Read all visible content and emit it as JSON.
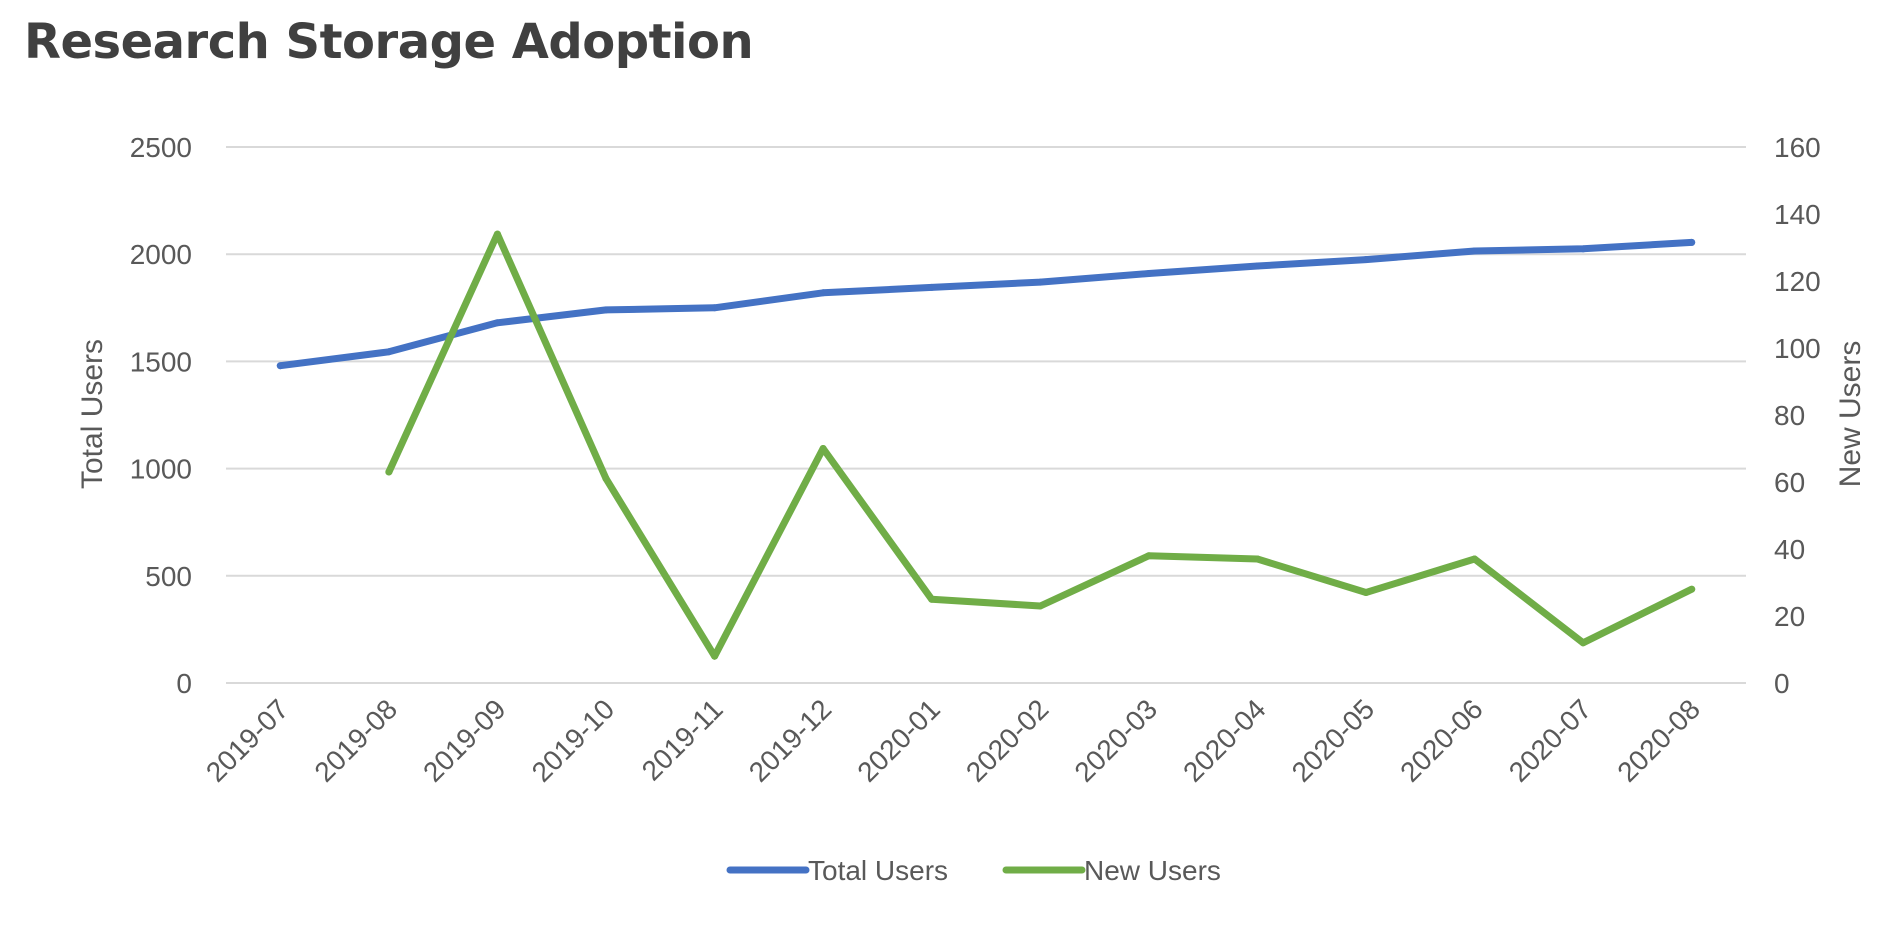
{
  "chart_data": {
    "type": "line",
    "title": "Research Storage Adoption",
    "categories": [
      "2019-07",
      "2019-08",
      "2019-09",
      "2019-10",
      "2019-11",
      "2019-12",
      "2020-01",
      "2020-02",
      "2020-03",
      "2020-04",
      "2020-05",
      "2020-06",
      "2020-07",
      "2020-08"
    ],
    "series": [
      {
        "name": "Total Users",
        "axis": "left",
        "color": "#4472C4",
        "values": [
          1480,
          1545,
          1680,
          1740,
          1750,
          1820,
          1845,
          1870,
          1910,
          1945,
          1975,
          2015,
          2025,
          2055
        ]
      },
      {
        "name": "New Users",
        "axis": "right",
        "color": "#70AD47",
        "values": [
          null,
          63,
          134,
          61,
          8,
          70,
          25,
          23,
          38,
          37,
          27,
          37,
          12,
          28
        ]
      }
    ],
    "y_left": {
      "label": "Total Users",
      "range": [
        0,
        2500
      ],
      "ticks": [
        0,
        500,
        1000,
        1500,
        2000,
        2500
      ]
    },
    "y_right": {
      "label": "New Users",
      "range": [
        0,
        160
      ],
      "ticks": [
        0,
        20,
        40,
        60,
        80,
        100,
        120,
        140,
        160
      ]
    },
    "grid": true,
    "legend_position": "bottom"
  }
}
